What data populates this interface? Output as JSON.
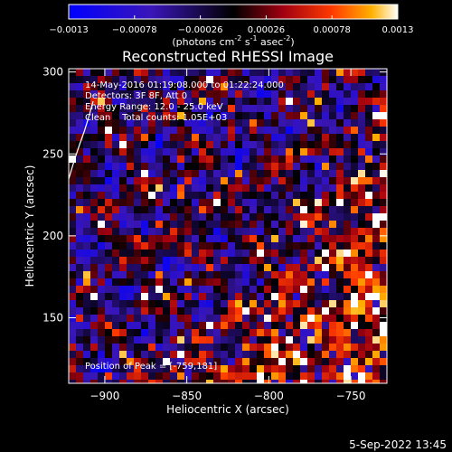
{
  "chart_data": {
    "type": "heatmap",
    "title": "Reconstructed RHESSI Image",
    "xlabel": "Heliocentric X (arcsec)",
    "ylabel": "Heliocentric Y (arcsec)",
    "xlim": [
      -922,
      -728
    ],
    "ylim": [
      110,
      302
    ],
    "x_ticks": [
      -900,
      -850,
      -800,
      -750
    ],
    "y_ticks": [
      150,
      200,
      250,
      300
    ],
    "colorbar": {
      "ticks": [
        -0.0013,
        -0.00078,
        -0.00026,
        0.00026,
        0.00078,
        0.0013
      ],
      "tick_labels": [
        "-0.0013",
        "-0.00078",
        "-0.00026",
        "0.00026",
        "0.00078",
        "0.0013"
      ],
      "units_main": "(photons cm",
      "units_exp1": "-2",
      "units_mid1": " s",
      "units_exp2": "-1",
      "units_mid2": " asec",
      "units_exp3": "-2",
      "units_end": ")"
    },
    "annotations": [
      "14-May-2016 01:19:08.000 to 01:22:24.000",
      "Detectors: 3F 8F, Att 0",
      "Energy Range: 12.0 - 25.0 keV",
      "Clean    Total counts: 1.05E+03"
    ],
    "peak_label": "Position of Peak = [-759,181]",
    "peak": [
      -759,
      181
    ],
    "grid": false
  },
  "footer": {
    "date": "5-Sep-2022 13:45"
  }
}
